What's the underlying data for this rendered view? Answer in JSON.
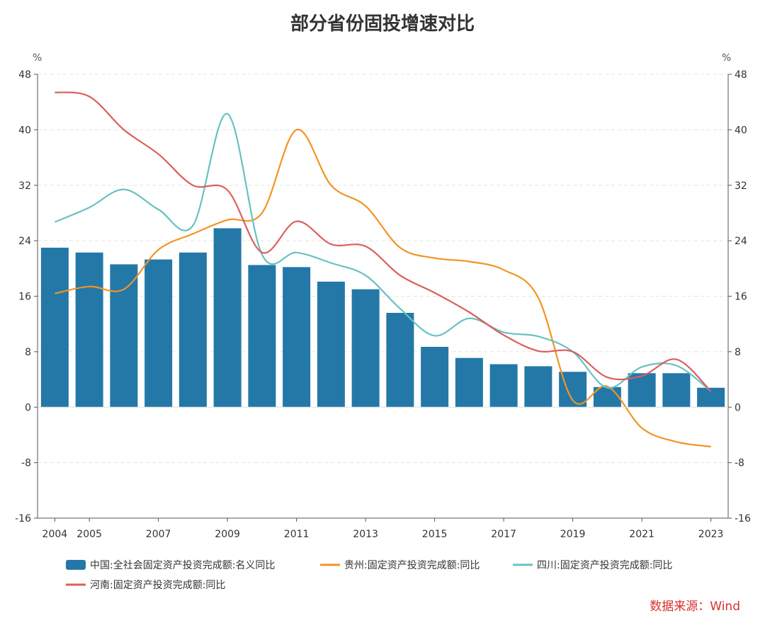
{
  "chart_data": {
    "type": "bar",
    "title": "部分省份固投增速对比",
    "y_unit_left": "%",
    "y_unit_right": "%",
    "ylim": [
      -16,
      48
    ],
    "yticks": [
      -16,
      -8,
      0,
      8,
      16,
      24,
      32,
      40,
      48
    ],
    "x": [
      2004,
      2005,
      2006,
      2007,
      2008,
      2009,
      2010,
      2011,
      2012,
      2013,
      2014,
      2015,
      2016,
      2017,
      2018,
      2019,
      2020,
      2021,
      2022,
      2023
    ],
    "xtick_labels": [
      "2004",
      "2005",
      "2007",
      "2009",
      "2011",
      "2013",
      "2015",
      "2017",
      "2019",
      "2021",
      "2023"
    ],
    "grid": "horizontal-dashed",
    "legend_position": "bottom",
    "series": [
      {
        "name": "中国:全社会固定资产投资完成额:名义同比",
        "type": "bar",
        "color": "#2378a8",
        "values": [
          23.0,
          22.3,
          20.6,
          21.3,
          22.3,
          25.8,
          20.5,
          20.2,
          18.1,
          17.0,
          13.6,
          8.7,
          7.1,
          6.2,
          5.9,
          5.1,
          2.9,
          4.9,
          4.9,
          2.8
        ]
      },
      {
        "name": "贵州:固定资产投资完成额:同比",
        "type": "line",
        "color": "#f29423",
        "values": [
          16.4,
          17.4,
          17.0,
          22.7,
          25.0,
          27.0,
          28.0,
          40.0,
          32.0,
          29.0,
          23.0,
          21.5,
          21.0,
          19.8,
          15.8,
          1.0,
          3.0,
          -3.0,
          -5.0,
          -5.7
        ]
      },
      {
        "name": "四川:固定资产投资完成额:同比",
        "type": "line",
        "color": "#68c1c2",
        "values": [
          26.7,
          28.8,
          31.4,
          28.5,
          26.2,
          42.3,
          22.0,
          22.3,
          20.8,
          19.0,
          14.2,
          10.3,
          12.8,
          10.8,
          10.2,
          8.0,
          2.8,
          5.8,
          6.0,
          2.3
        ]
      },
      {
        "name": "河南:固定资产投资完成额:同比",
        "type": "line",
        "color": "#d95f5e",
        "values": [
          45.4,
          44.8,
          40.0,
          36.5,
          32.0,
          31.3,
          22.3,
          26.8,
          23.5,
          23.2,
          19.0,
          16.5,
          13.7,
          10.4,
          8.1,
          8.0,
          4.3,
          4.5,
          6.9,
          2.3
        ]
      }
    ]
  },
  "source_label": "数据来源：Wind"
}
